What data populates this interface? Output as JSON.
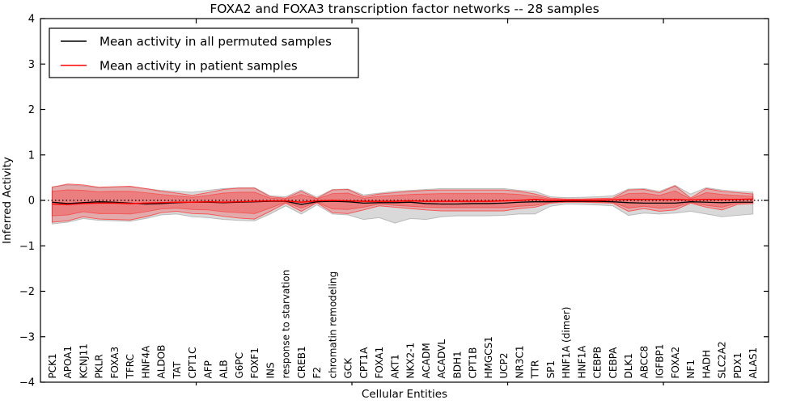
{
  "chart_data": {
    "type": "line",
    "title": "FOXA2 and FOXA3 transcription factor networks -- 28 samples",
    "xlabel": "Cellular Entities",
    "ylabel": "Inferred Activity",
    "ylim": [
      -4,
      4
    ],
    "xlim": [
      0,
      46.75
    ],
    "yticks": [
      4,
      3,
      2,
      1,
      0,
      -1,
      -2,
      -3,
      -4
    ],
    "yticklabels": [
      "4",
      "3",
      "2",
      "1",
      "0",
      "−1",
      "−2",
      "−3",
      "−4"
    ],
    "xticks": [
      10,
      20,
      30,
      40
    ],
    "grid": false,
    "legend_position": "upper left",
    "categories": [
      "PCK1",
      "APOA1",
      "KCNJ11",
      "PKLR",
      "FOXA3",
      "TFRC",
      "HNF4A",
      "ALDOB",
      "TAT",
      "CPT1C",
      "AFP",
      "ALB",
      "G6PC",
      "FOXF1",
      "INS",
      "response to starvation",
      "CREB1",
      "F2",
      "chromatin remodeling",
      "GCK",
      "CPT1A",
      "FOXA1",
      "AKT1",
      "NKX2-1",
      "ACADM",
      "ACADVL",
      "BDH1",
      "CPT1B",
      "HMGCS1",
      "UCP2",
      "NR3C1",
      "TTR",
      "SP1",
      "HNF1A (dimer)",
      "HNF1A",
      "CEBPB",
      "CEBPA",
      "DLK1",
      "ABCC8",
      "IGFBP1",
      "FOXA2",
      "NF1",
      "HADH",
      "SLC2A2",
      "PDX1",
      "ALAS1"
    ],
    "series": [
      {
        "name": "Mean activity in all permuted samples",
        "color": "#000000",
        "values": [
          -0.04,
          -0.07,
          -0.05,
          -0.03,
          -0.04,
          -0.06,
          -0.08,
          -0.07,
          -0.05,
          -0.04,
          -0.04,
          -0.05,
          -0.04,
          -0.03,
          -0.02,
          -0.02,
          -0.09,
          -0.03,
          -0.02,
          -0.03,
          -0.06,
          -0.05,
          -0.05,
          -0.04,
          -0.07,
          -0.08,
          -0.08,
          -0.07,
          -0.07,
          -0.06,
          -0.04,
          -0.03,
          -0.03,
          -0.02,
          -0.02,
          -0.02,
          -0.03,
          -0.05,
          -0.06,
          -0.06,
          -0.06,
          -0.03,
          -0.04,
          -0.05,
          -0.04,
          -0.04
        ]
      },
      {
        "name": "Mean activity in patient samples",
        "color": "#ff0000",
        "values": [
          -0.08,
          -0.09,
          -0.07,
          -0.06,
          -0.06,
          -0.07,
          -0.06,
          -0.05,
          -0.04,
          -0.04,
          -0.03,
          -0.04,
          -0.03,
          -0.02,
          -0.01,
          -0.01,
          -0.04,
          -0.01,
          0.0,
          -0.01,
          -0.02,
          -0.02,
          -0.02,
          -0.01,
          -0.02,
          -0.02,
          -0.02,
          -0.02,
          -0.02,
          -0.01,
          0.0,
          0.02,
          0.0,
          0.0,
          0.0,
          0.0,
          0.01,
          0.02,
          0.02,
          0.02,
          0.02,
          0.01,
          0.02,
          0.02,
          0.02,
          0.03
        ]
      }
    ],
    "bands": [
      {
        "name": "permuted-samples-envelope",
        "fill": "rgba(130,130,130,0.30)",
        "stroke": "rgba(130,130,130,0.45)",
        "upper": [
          0.3,
          0.34,
          0.32,
          0.28,
          0.29,
          0.3,
          0.26,
          0.22,
          0.2,
          0.18,
          0.22,
          0.26,
          0.28,
          0.28,
          0.1,
          0.08,
          0.23,
          0.07,
          0.24,
          0.25,
          0.12,
          0.16,
          0.2,
          0.22,
          0.24,
          0.26,
          0.26,
          0.26,
          0.26,
          0.26,
          0.22,
          0.2,
          0.08,
          0.06,
          0.07,
          0.08,
          0.1,
          0.25,
          0.26,
          0.2,
          0.33,
          0.14,
          0.28,
          0.23,
          0.2,
          0.18
        ],
        "lower": [
          -0.52,
          -0.48,
          -0.4,
          -0.44,
          -0.45,
          -0.46,
          -0.4,
          -0.32,
          -0.3,
          -0.36,
          -0.38,
          -0.42,
          -0.44,
          -0.45,
          -0.3,
          -0.12,
          -0.3,
          -0.1,
          -0.3,
          -0.32,
          -0.42,
          -0.38,
          -0.5,
          -0.4,
          -0.42,
          -0.36,
          -0.34,
          -0.34,
          -0.34,
          -0.33,
          -0.3,
          -0.3,
          -0.13,
          -0.08,
          -0.09,
          -0.1,
          -0.12,
          -0.33,
          -0.28,
          -0.3,
          -0.28,
          -0.24,
          -0.3,
          -0.36,
          -0.33,
          -0.3
        ]
      },
      {
        "name": "patient-samples-envelope-outer",
        "fill": "rgba(255,30,30,0.25)",
        "stroke": "rgba(255,50,50,0.75)",
        "upper": [
          0.29,
          0.36,
          0.34,
          0.29,
          0.3,
          0.31,
          0.26,
          0.2,
          0.16,
          0.11,
          0.17,
          0.24,
          0.27,
          0.27,
          0.08,
          0.05,
          0.2,
          0.04,
          0.23,
          0.24,
          0.08,
          0.14,
          0.17,
          0.2,
          0.22,
          0.23,
          0.23,
          0.23,
          0.23,
          0.23,
          0.2,
          0.14,
          0.05,
          0.03,
          0.03,
          0.04,
          0.05,
          0.23,
          0.24,
          0.17,
          0.32,
          0.05,
          0.26,
          0.2,
          0.17,
          0.14
        ],
        "lower": [
          -0.48,
          -0.45,
          -0.36,
          -0.41,
          -0.42,
          -0.43,
          -0.36,
          -0.27,
          -0.24,
          -0.29,
          -0.3,
          -0.35,
          -0.39,
          -0.41,
          -0.24,
          -0.06,
          -0.24,
          -0.05,
          -0.27,
          -0.29,
          -0.21,
          -0.12,
          -0.15,
          -0.18,
          -0.21,
          -0.23,
          -0.23,
          -0.23,
          -0.23,
          -0.23,
          -0.18,
          -0.15,
          -0.06,
          -0.04,
          -0.04,
          -0.05,
          -0.06,
          -0.24,
          -0.18,
          -0.24,
          -0.21,
          -0.06,
          -0.15,
          -0.21,
          -0.09,
          -0.07
        ]
      },
      {
        "name": "patient-samples-envelope-inner",
        "fill": "rgba(255,30,30,0.30)",
        "stroke": "rgba(255,40,40,0.55)",
        "upper": [
          0.2,
          0.23,
          0.22,
          0.19,
          0.2,
          0.2,
          0.17,
          0.13,
          0.1,
          0.07,
          0.11,
          0.16,
          0.18,
          0.18,
          0.05,
          0.03,
          0.13,
          0.03,
          0.15,
          0.16,
          0.05,
          0.09,
          0.11,
          0.13,
          0.14,
          0.15,
          0.15,
          0.15,
          0.15,
          0.15,
          0.13,
          0.09,
          0.03,
          0.02,
          0.02,
          0.03,
          0.03,
          0.15,
          0.16,
          0.11,
          0.21,
          0.03,
          0.17,
          0.13,
          0.11,
          0.09
        ],
        "lower": [
          -0.34,
          -0.32,
          -0.25,
          -0.29,
          -0.29,
          -0.3,
          -0.25,
          -0.19,
          -0.17,
          -0.2,
          -0.21,
          -0.25,
          -0.27,
          -0.29,
          -0.17,
          -0.04,
          -0.17,
          -0.04,
          -0.19,
          -0.2,
          -0.15,
          -0.08,
          -0.11,
          -0.13,
          -0.15,
          -0.16,
          -0.16,
          -0.16,
          -0.16,
          -0.16,
          -0.13,
          -0.11,
          -0.04,
          -0.03,
          -0.03,
          -0.04,
          -0.04,
          -0.17,
          -0.13,
          -0.17,
          -0.15,
          -0.04,
          -0.11,
          -0.15,
          -0.06,
          -0.05
        ]
      }
    ],
    "zero_line": {
      "value": 0,
      "style": "dotted",
      "color": "#000000"
    }
  },
  "legend": {
    "entries": [
      {
        "label": "Mean activity in all permuted samples",
        "color": "#000000"
      },
      {
        "label": "Mean activity in patient samples",
        "color": "#ff0000"
      }
    ]
  }
}
